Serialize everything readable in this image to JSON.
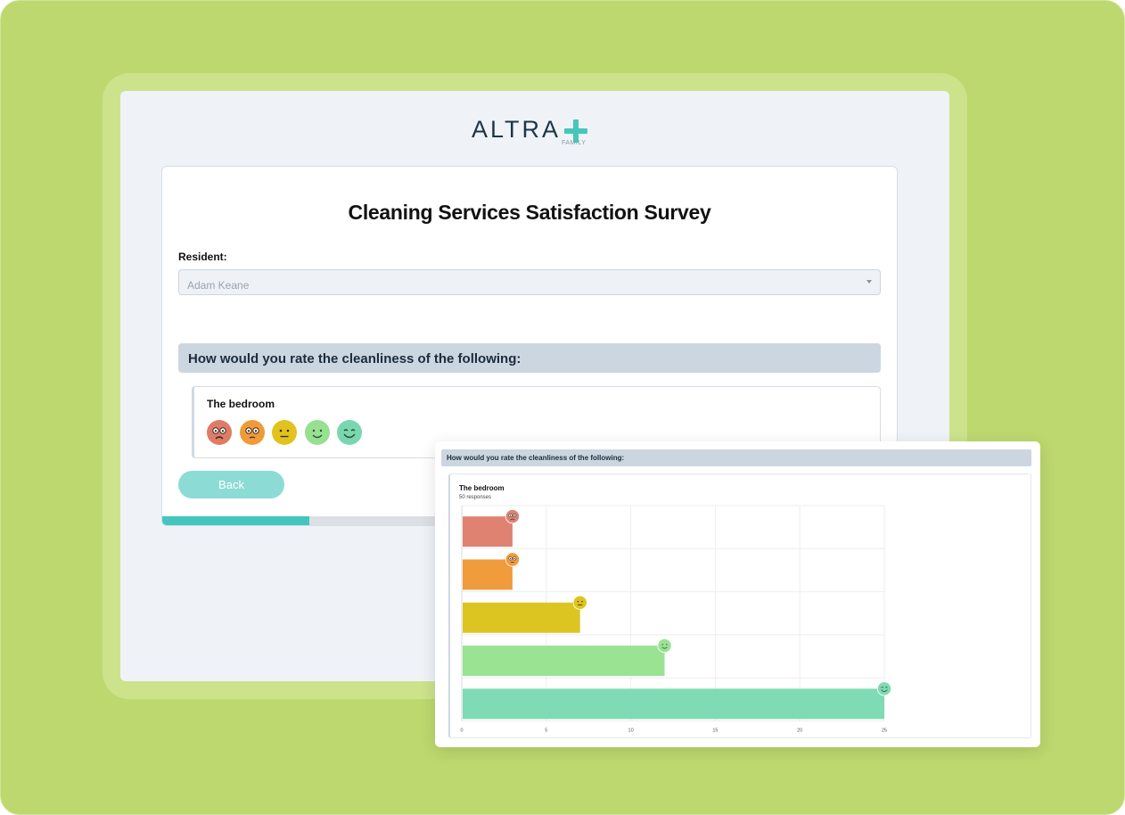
{
  "logo": {
    "text": "ALTRA",
    "sub": "FAMILY"
  },
  "survey": {
    "title": "Cleaning Services Satisfaction Survey",
    "resident_label": "Resident:",
    "resident_value": "Adam Keane",
    "question": "How would you rate the cleanliness of the following:",
    "item_title": "The bedroom",
    "back_label": "Back",
    "progress": 0.2
  },
  "faces": [
    {
      "name": "very-dissatisfied-icon",
      "color": "#e07b67"
    },
    {
      "name": "dissatisfied-icon",
      "color": "#f09a38"
    },
    {
      "name": "neutral-icon",
      "color": "#e2c21e"
    },
    {
      "name": "satisfied-icon",
      "color": "#96e090"
    },
    {
      "name": "very-satisfied-icon",
      "color": "#79d7b0"
    }
  ],
  "results": {
    "question": "How would you rate the cleanliness of the following:",
    "item_title": "The bedroom",
    "responses": "50 responses"
  },
  "chart_data": {
    "type": "bar",
    "orientation": "horizontal",
    "categories": [
      "very-dissatisfied",
      "dissatisfied",
      "neutral",
      "satisfied",
      "very-satisfied"
    ],
    "values": [
      3,
      3,
      7,
      12,
      25
    ],
    "colors": [
      "#df8272",
      "#f09b3c",
      "#dcc521",
      "#9ae393",
      "#7fdbb3"
    ],
    "xlim": [
      0,
      25
    ],
    "xticks": [
      "0",
      "5",
      "10",
      "15",
      "20",
      "25"
    ],
    "grid": true
  }
}
